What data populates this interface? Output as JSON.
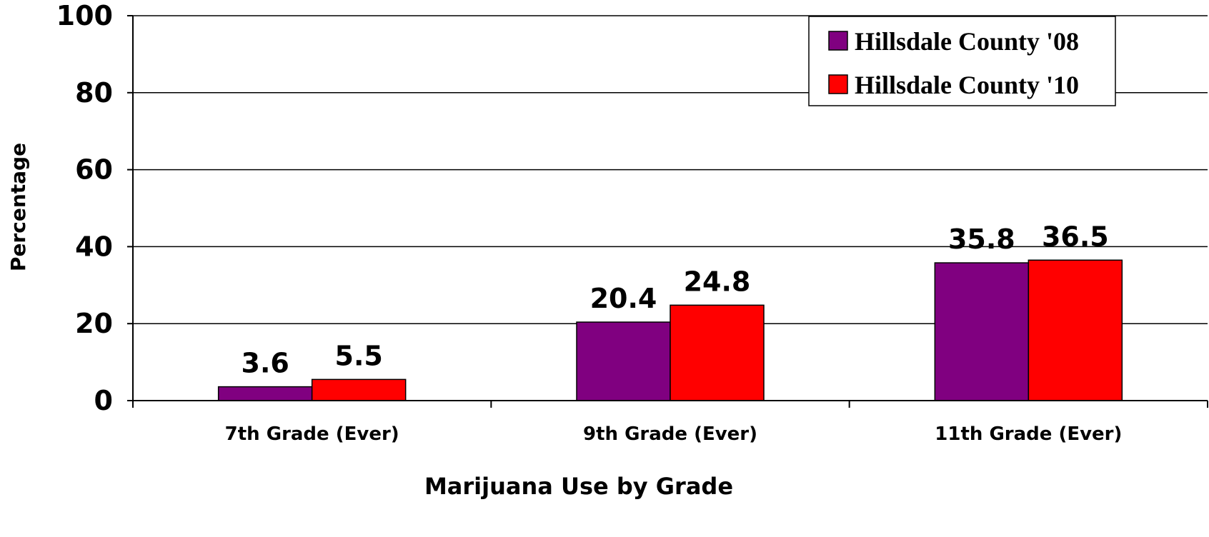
{
  "chart_data": {
    "type": "bar",
    "categories": [
      "7th Grade (Ever)",
      "9th Grade (Ever)",
      "11th Grade (Ever)"
    ],
    "series": [
      {
        "name": "Hillsdale County '08",
        "color": "#800080",
        "values": [
          3.6,
          20.4,
          35.8
        ]
      },
      {
        "name": "Hillsdale County '10",
        "color": "#ff0000",
        "values": [
          5.5,
          24.8,
          36.5
        ]
      }
    ],
    "xlabel": "Marijuana Use by Grade",
    "ylabel": "Percentage",
    "ylim": [
      0,
      100
    ],
    "yticks": [
      0,
      20,
      40,
      60,
      80,
      100
    ],
    "grid": true,
    "legend_position": "top-right"
  }
}
